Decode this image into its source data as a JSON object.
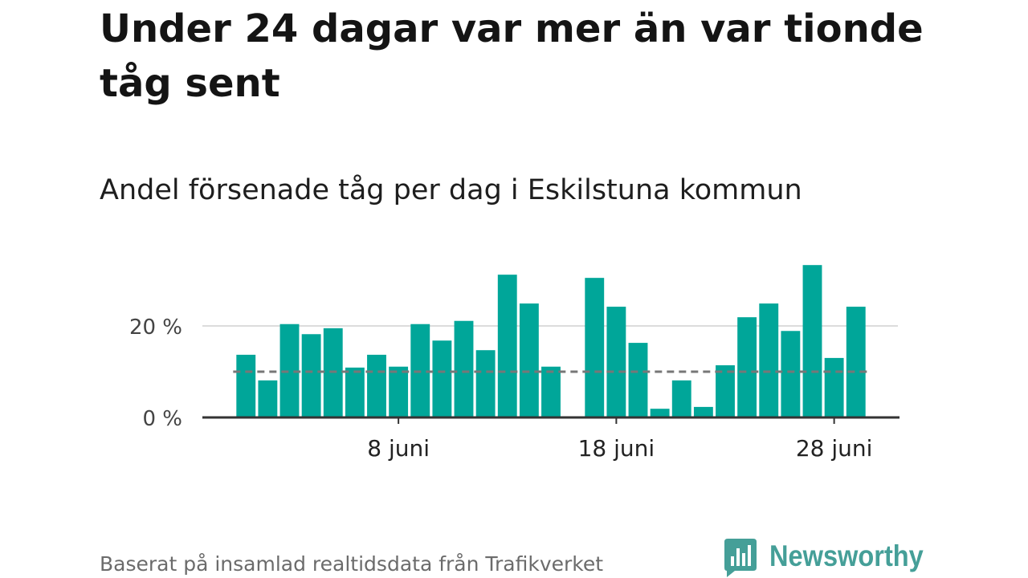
{
  "chart_data": {
    "type": "bar",
    "title": "Under 24 dagar var mer än var tionde tåg sent",
    "subtitle": "Andel försenade tåg per dag i Eskilstuna kommun",
    "xlabel": "",
    "ylabel": "",
    "x": [
      "1 juni",
      "2 juni",
      "3 juni",
      "4 juni",
      "5 juni",
      "6 juni",
      "7 juni",
      "8 juni",
      "9 juni",
      "10 juni",
      "11 juni",
      "12 juni",
      "13 juni",
      "14 juni",
      "15 juni",
      "16 juni",
      "17 juni",
      "18 juni",
      "19 juni",
      "20 juni",
      "21 juni",
      "22 juni",
      "23 juni",
      "24 juni",
      "25 juni",
      "26 juni",
      "27 juni",
      "28 juni",
      "29 juni"
    ],
    "values": [
      13.7,
      8.1,
      20.4,
      18.2,
      19.5,
      10.9,
      13.7,
      11.1,
      20.4,
      16.8,
      21.1,
      14.7,
      31.2,
      24.9,
      11.1,
      null,
      30.5,
      24.2,
      16.3,
      1.9,
      8.1,
      2.3,
      11.4,
      21.9,
      24.9,
      18.9,
      33.3,
      13.0,
      24.2
    ],
    "xticks": [
      "8 juni",
      "18 juni",
      "28 juni"
    ],
    "yticks": [
      0,
      20
    ],
    "ytick_labels": [
      "0 %",
      "20 %"
    ],
    "xlim": [
      "30 maj",
      "1 juli"
    ],
    "ylim": [
      0,
      35
    ],
    "grid": {
      "y": true,
      "x": false
    },
    "reference_line": {
      "y": 10,
      "style": "dashed",
      "color": "#777777"
    },
    "bar_color": "#00a699"
  },
  "footer": {
    "source": "Baserat på insamlad realtidsdata från Trafikverket"
  },
  "logo": {
    "name": "Newsworthy",
    "icon": "bar-chart-speech-bubble-icon",
    "color": "#459f98"
  }
}
